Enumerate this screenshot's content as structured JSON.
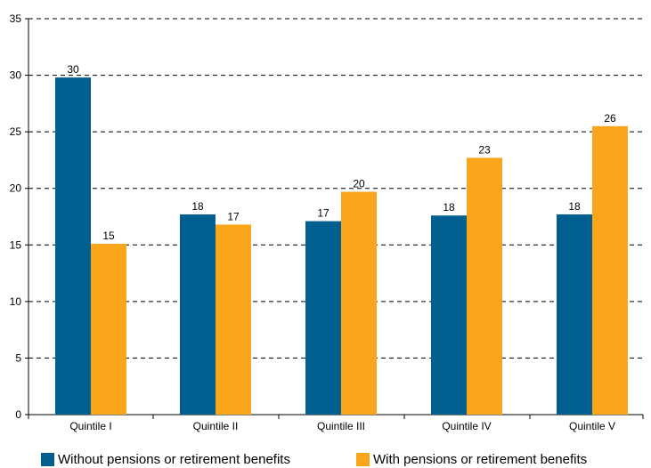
{
  "chart_data": {
    "type": "bar",
    "categories": [
      "Quintile I",
      "Quintile II",
      "Quintile III",
      "Quintile IV",
      "Quintile V"
    ],
    "series": [
      {
        "name": "Without pensions or retirement benefits",
        "values": [
          29.8,
          17.7,
          17.1,
          17.6,
          17.7
        ],
        "labels": [
          "30",
          "18",
          "17",
          "18",
          "18"
        ],
        "color": "#005f8e"
      },
      {
        "name": "With pensions or retirement benefits",
        "values": [
          15.1,
          16.8,
          19.7,
          22.7,
          25.5
        ],
        "labels": [
          "15",
          "17",
          "20",
          "23",
          "26"
        ],
        "color": "#f9a61a"
      }
    ],
    "title": "",
    "xlabel": "",
    "ylabel": "",
    "ylim": [
      0,
      35
    ],
    "yticks": [
      0,
      5,
      10,
      15,
      20,
      25,
      30,
      35
    ],
    "grid": "horizontal dashed",
    "legend_position": "bottom"
  },
  "colors": {
    "without_pensions": "#005f8e",
    "with_pensions": "#f9a61a",
    "grid": "#000000"
  }
}
